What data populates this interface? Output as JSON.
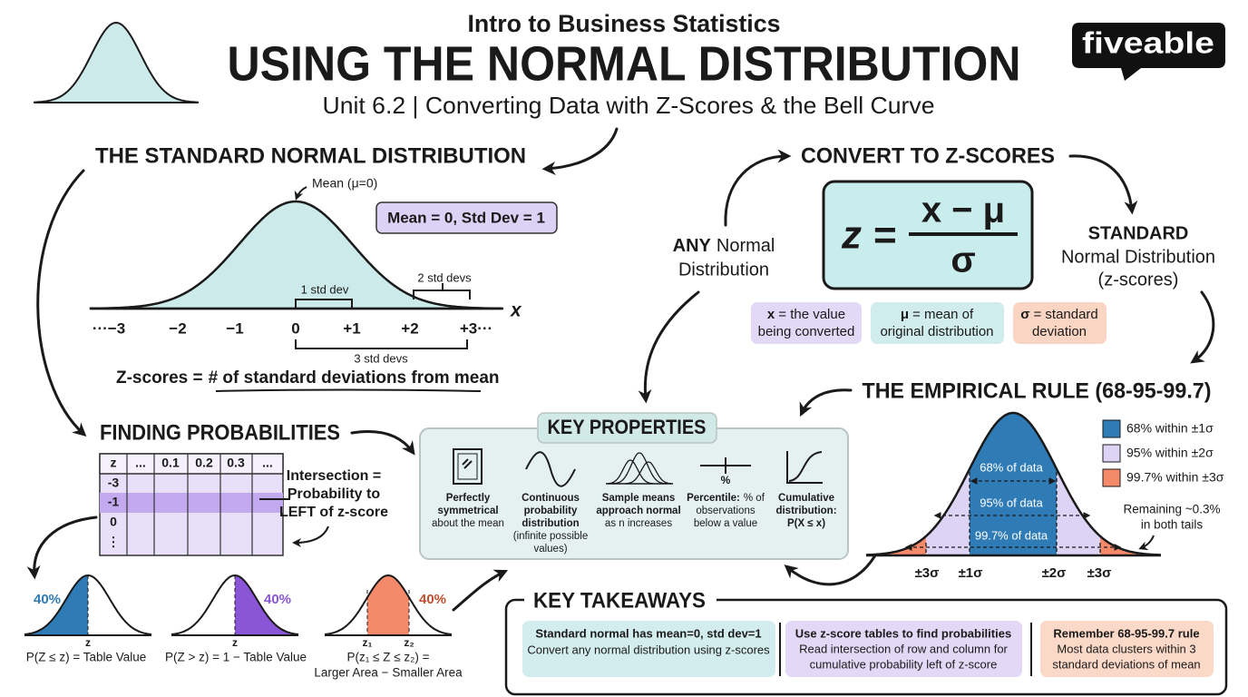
{
  "header": {
    "course": "Intro to Business Statistics",
    "title": "USING THE NORMAL DISTRIBUTION",
    "subtitle": "Unit 6.2 | Converting Data with Z-Scores & the Bell Curve",
    "logo": "fiveable"
  },
  "standard_normal": {
    "heading": "THE STANDARD NORMAL DISTRIBUTION",
    "mean_label": "Mean (μ=0)",
    "badge": "Mean = 0, Std Dev = 1",
    "axis_labels": [
      "···−3",
      "−2",
      "−1",
      "0",
      "+1",
      "+2",
      "+3···"
    ],
    "axis_variable": "x",
    "spans": [
      "1 std dev",
      "2 std devs",
      "3 std devs"
    ],
    "caption": {
      "lead": "Z-scores =",
      "rest": "# of standard deviations from mean"
    }
  },
  "convert": {
    "heading": "CONVERT TO Z-SCORES",
    "left": {
      "bold": "ANY",
      "lines": [
        "Normal",
        "Distribution"
      ]
    },
    "formula": {
      "lhs": "z =",
      "numerator": "x − μ",
      "denominator": "σ"
    },
    "right": {
      "bold": "STANDARD",
      "lines": [
        "Normal Distribution",
        "(z-scores)"
      ]
    },
    "chips": [
      {
        "symbol": "x",
        "lines": [
          "= the value",
          "being converted"
        ]
      },
      {
        "symbol": "μ",
        "lines": [
          "= mean of",
          "original distribution"
        ]
      },
      {
        "symbol": "σ",
        "lines": [
          "= standard",
          "deviation"
        ]
      }
    ]
  },
  "empirical": {
    "heading": "THE EMPIRICAL RULE (68-95-99.7)",
    "legend": [
      "68% within ±1σ",
      "95% within ±2σ",
      "99.7% within ±3σ"
    ],
    "regions": [
      "68% of data",
      "95% of data",
      "99.7% of data"
    ],
    "tail_note": [
      "Remaining ~0.3%",
      "in both tails"
    ],
    "axis_labels": [
      "±3σ",
      "±1σ",
      "±2σ",
      "±3σ"
    ]
  },
  "finding": {
    "heading": "FINDING PROBABILITIES",
    "table": {
      "header": [
        "z",
        "...",
        "0.1",
        "0.2",
        "0.3",
        "..."
      ],
      "rows": [
        "-3",
        "-1",
        "0",
        "⋮"
      ]
    },
    "note": [
      "Intersection =",
      "Probability to",
      "LEFT of z-score"
    ],
    "curves": [
      {
        "percent": "40%",
        "marker": "z",
        "caption": [
          "P(Z ≤ z) = Table Value"
        ]
      },
      {
        "percent": "40%",
        "marker": "z",
        "caption": [
          "P(Z > z) = 1 − Table Value"
        ]
      },
      {
        "percent": "40%",
        "markers": [
          "z₁",
          "z₂"
        ],
        "caption": [
          "P(z₁ ≤ Z ≤ z₂) =",
          "Larger Area − Smaller Area"
        ]
      }
    ]
  },
  "key_properties": {
    "heading": "KEY PROPERTIES",
    "items": [
      {
        "title": [
          "Perfectly",
          "symmetrical"
        ],
        "desc": [
          "about the mean"
        ]
      },
      {
        "title": [
          "Continuous",
          "probability",
          "distribution"
        ],
        "desc": [
          "(infinite possible",
          "values)"
        ]
      },
      {
        "title": [
          "Sample means",
          "approach normal"
        ],
        "desc": [
          "as n increases"
        ]
      },
      {
        "icon": "%",
        "title": [
          "Percentile:"
        ],
        "desc": [
          "% of",
          "observations",
          "below a value"
        ]
      },
      {
        "title": [
          "Cumulative",
          "distribution:",
          "P(X ≤ x)"
        ]
      }
    ]
  },
  "takeaways": {
    "heading": "KEY TAKEAWAYS",
    "cards": [
      {
        "title": "Standard normal has mean=0, std dev=1",
        "lines": [
          "Convert any normal distribution using z-scores"
        ]
      },
      {
        "title": "Use z-score tables to find probabilities",
        "lines": [
          "Read intersection of row and column for",
          "cumulative probability left of z-score"
        ]
      },
      {
        "title": "Remember 68-95-99.7 rule",
        "lines": [
          "Most data clusters within 3",
          "standard deviations of mean"
        ]
      }
    ]
  }
}
